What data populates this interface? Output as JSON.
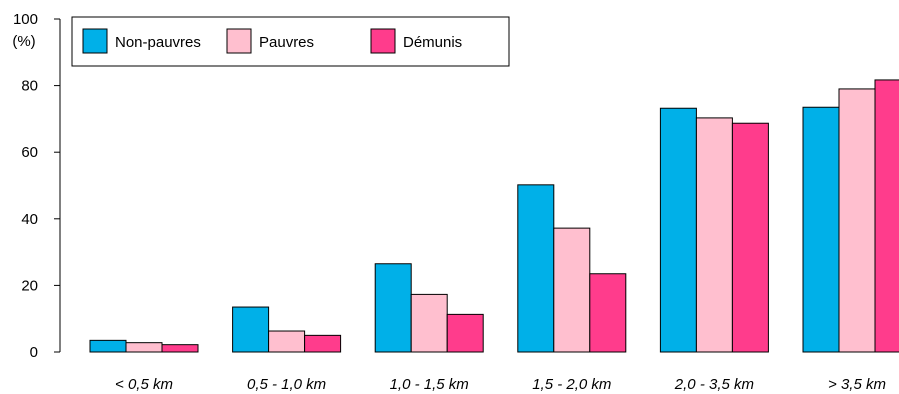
{
  "chart_data": {
    "type": "bar",
    "ylabel": "(%)",
    "ylim": [
      0,
      100
    ],
    "yticks": [
      0,
      20,
      40,
      60,
      80,
      100
    ],
    "categories": [
      "< 0,5 km",
      "0,5 - 1,0 km",
      "1,0 - 1,5 km",
      "1,5 - 2,0 km",
      "2,0 - 3,5 km",
      "> 3,5 km"
    ],
    "series": [
      {
        "name": "Non-pauvres",
        "color": "#00b0e8",
        "values": [
          3.5,
          13.5,
          26.5,
          50.2,
          73.2,
          73.5
        ]
      },
      {
        "name": "Pauvres",
        "color": "#ffbfcf",
        "values": [
          2.8,
          6.3,
          17.3,
          37.2,
          70.3,
          79.0
        ]
      },
      {
        "name": "Démunis",
        "color": "#ff3c8c",
        "values": [
          2.2,
          5.0,
          11.3,
          23.5,
          68.7,
          81.7
        ]
      }
    ],
    "legend_position": "top-left",
    "grid": false
  }
}
